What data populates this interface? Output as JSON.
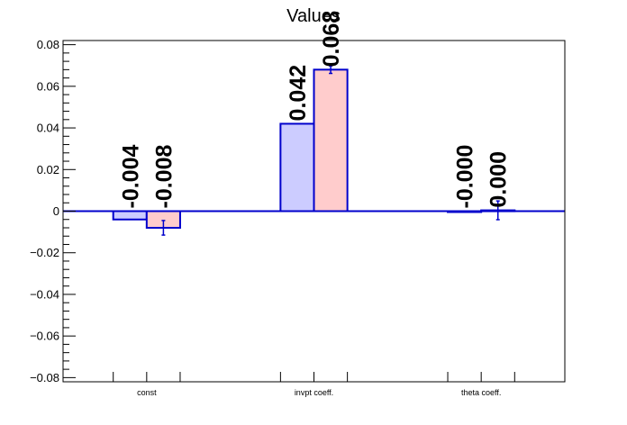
{
  "chart_data": {
    "type": "bar",
    "title": "Values",
    "categories": [
      "const",
      "invpt coeff.",
      "theta coeff."
    ],
    "ylim": [
      -0.082,
      0.082
    ],
    "yticks": [
      -0.08,
      -0.06,
      -0.04,
      -0.02,
      0,
      0.02,
      0.04,
      0.06,
      0.08
    ],
    "ytick_labels": [
      "−0.08",
      "−0.06",
      "−0.04",
      "−0.02",
      "0",
      "0.02",
      "0.04",
      "0.06",
      "0.08"
    ],
    "grid": false,
    "legend": "none",
    "series": [
      {
        "values": [
          -0.004,
          0.042,
          -0.0002
        ],
        "value_labels": [
          "-0.004",
          "0.042",
          "-0.000"
        ],
        "errors": [
          0,
          0,
          0
        ],
        "fill_color": "#ccccff",
        "line_color": "#0000cc"
      },
      {
        "values": [
          -0.008,
          0.068,
          0.0004
        ],
        "value_labels": [
          "-0.008",
          "0.068",
          "0.000"
        ],
        "errors": [
          0.0035,
          0.0018,
          0.0045
        ],
        "fill_color": "#ffcccc",
        "line_color": "#0000cc"
      }
    ]
  }
}
